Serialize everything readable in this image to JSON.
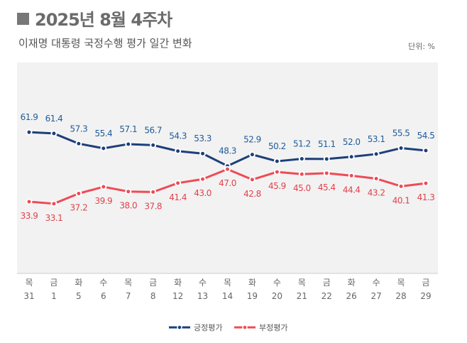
{
  "header": {
    "title": "2025년 8월 4주차",
    "subtitle": "이재명 대통령 국정수행 평가 일간 변화",
    "unit": "단위: %"
  },
  "chart_data": {
    "type": "line",
    "title": "2025년 8월 4주차",
    "subtitle": "이재명 대통령 국정수행 평가 일간 변화",
    "unit": "%",
    "categories": [
      {
        "day": "목",
        "date": "31"
      },
      {
        "day": "금",
        "date": "1"
      },
      {
        "day": "화",
        "date": "5"
      },
      {
        "day": "수",
        "date": "6"
      },
      {
        "day": "목",
        "date": "7"
      },
      {
        "day": "금",
        "date": "8"
      },
      {
        "day": "화",
        "date": "12"
      },
      {
        "day": "수",
        "date": "13"
      },
      {
        "day": "목",
        "date": "14"
      },
      {
        "day": "화",
        "date": "19"
      },
      {
        "day": "수",
        "date": "20"
      },
      {
        "day": "목",
        "date": "21"
      },
      {
        "day": "금",
        "date": "22"
      },
      {
        "day": "화",
        "date": "26"
      },
      {
        "day": "수",
        "date": "27"
      },
      {
        "day": "목",
        "date": "28"
      },
      {
        "day": "금",
        "date": "29"
      }
    ],
    "series": [
      {
        "name": "긍정평가",
        "color": "#1d3f7a",
        "label_color": "#1f5b9a",
        "values": [
          61.9,
          61.4,
          57.3,
          55.4,
          57.1,
          56.7,
          54.3,
          53.3,
          48.3,
          52.9,
          50.2,
          51.2,
          51.1,
          52.0,
          53.1,
          55.5,
          54.5
        ]
      },
      {
        "name": "부정평가",
        "color": "#ee4b55",
        "label_color": "#e0424c",
        "values": [
          33.9,
          33.1,
          37.2,
          39.9,
          38.0,
          37.8,
          41.4,
          43.0,
          47.0,
          42.8,
          45.9,
          45.0,
          45.4,
          44.4,
          43.2,
          40.1,
          41.3
        ]
      }
    ],
    "ylim": [
      5,
      90
    ],
    "grid": false,
    "legend": "bottom-center",
    "background": "#f2f2f2"
  }
}
